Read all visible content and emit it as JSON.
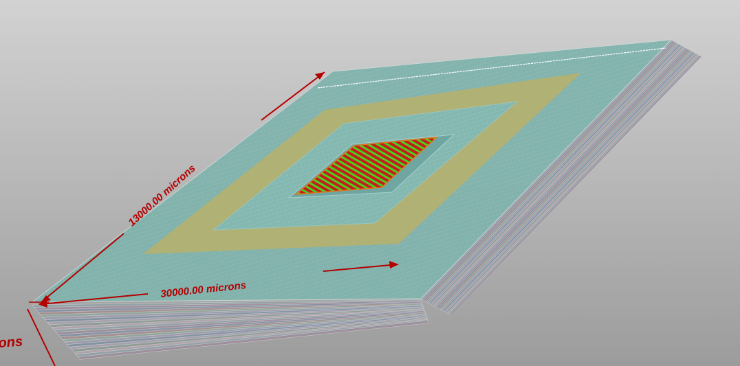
{
  "scene": {
    "background_top": "#d2d2d2",
    "background_bottom": "#9c9c9c",
    "dimension_color": "#b30000",
    "dimensions": {
      "length_label": "13000.00 microns",
      "width_label": "30000.00 microns",
      "height_label": "ons"
    },
    "colors": {
      "top_surface": "#7fb2ac",
      "outer_ring": "#b8b06a",
      "inner_panel": "#84b8b2",
      "core_region": "#e3761c",
      "core_pattern_red": "#c41d1d",
      "core_pattern_green": "#4bd11e",
      "side_layers": [
        "#8fa1a6",
        "#9b8c9a",
        "#8290a4",
        "#a38c8c",
        "#8ea69c",
        "#9c9aae",
        "#7f8fa0",
        "#a6a0b0",
        "#8a9a92",
        "#b2a2ae"
      ]
    }
  }
}
